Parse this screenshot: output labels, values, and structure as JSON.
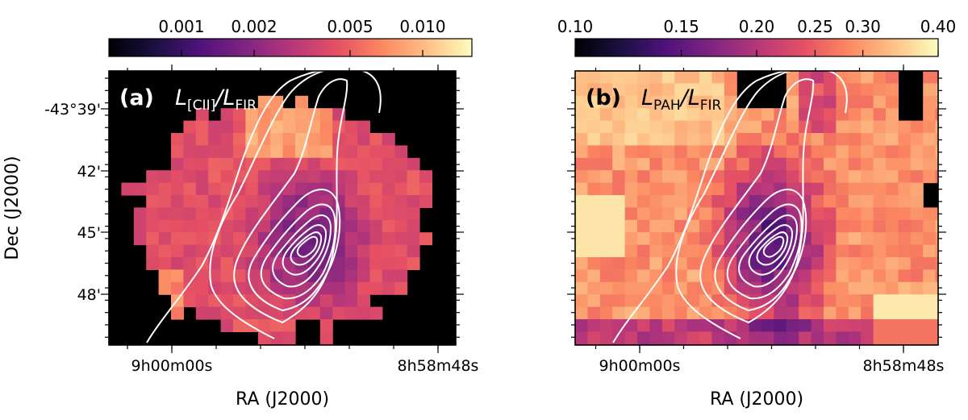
{
  "figure": {
    "ylabel": "Dec (J2000)",
    "xlabel": "RA (J2000)",
    "dec_ticks": [
      "-43°39'",
      "42'",
      "45'",
      "48'"
    ],
    "ra_ticks": [
      "9h00m00s",
      "8h58m48s"
    ]
  },
  "chart_data": [
    {
      "type": "heatmap",
      "panel_label": "(a)",
      "title_main": "L",
      "title_sub1": "[CII]",
      "title_mid": "/L",
      "title_sub2": "FIR",
      "colormap": "magma",
      "colorbar": {
        "scale": "log",
        "range": [
          0.0005,
          0.016
        ],
        "ticks": [
          0.001,
          0.002,
          0.005,
          0.01
        ],
        "tick_labels": [
          "0.001",
          "0.002",
          "0.005",
          "0.010"
        ]
      },
      "masked_color": "#000000",
      "contours": "white"
    },
    {
      "type": "heatmap",
      "panel_label": "(b)",
      "title_main": "L",
      "title_sub1": "PAH",
      "title_mid": "/L",
      "title_sub2": "FIR",
      "colormap": "magma",
      "colorbar": {
        "scale": "log",
        "range": [
          0.1,
          0.4
        ],
        "ticks": [
          0.1,
          0.15,
          0.2,
          0.25,
          0.3,
          0.4
        ],
        "tick_labels": [
          "0.10",
          "0.15",
          "0.20",
          "0.25",
          "0.30",
          "0.40"
        ]
      },
      "masked_color": "#000000",
      "contours": "white"
    }
  ]
}
